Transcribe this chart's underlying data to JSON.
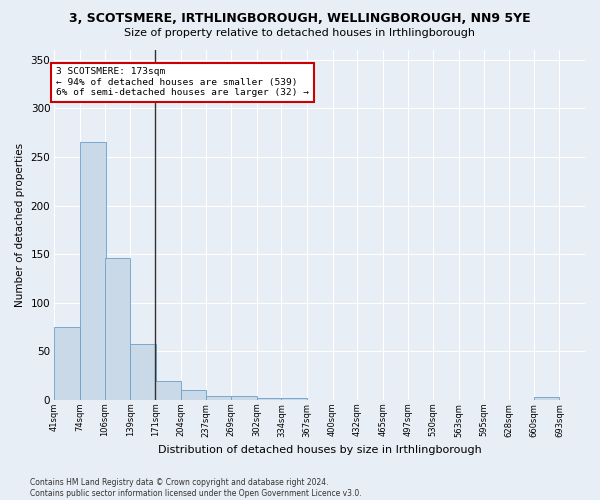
{
  "title": "3, SCOTSMERE, IRTHLINGBOROUGH, WELLINGBOROUGH, NN9 5YE",
  "subtitle": "Size of property relative to detached houses in Irthlingborough",
  "xlabel": "Distribution of detached houses by size in Irthlingborough",
  "ylabel": "Number of detached properties",
  "footnote": "Contains HM Land Registry data © Crown copyright and database right 2024.\nContains public sector information licensed under the Open Government Licence v3.0.",
  "bar_color": "#c9d9e8",
  "bar_edge_color": "#6a9fc8",
  "vline_color": "#333333",
  "vline_x_bin": 4,
  "annotation_text": "3 SCOTSMERE: 173sqm\n← 94% of detached houses are smaller (539)\n6% of semi-detached houses are larger (32) →",
  "annotation_box_color": "#ffffff",
  "annotation_box_edge": "#cc0000",
  "bins": [
    41,
    74,
    106,
    139,
    171,
    204,
    237,
    269,
    302,
    334,
    367,
    400,
    432,
    465,
    497,
    530,
    563,
    595,
    628,
    660,
    693
  ],
  "counts": [
    75,
    265,
    146,
    57,
    19,
    10,
    4,
    4,
    2,
    2,
    0,
    0,
    0,
    0,
    0,
    0,
    0,
    0,
    0,
    3
  ],
  "ylim": [
    0,
    360
  ],
  "yticks": [
    0,
    50,
    100,
    150,
    200,
    250,
    300,
    350
  ],
  "bg_color": "#e8eef5",
  "plot_bg_color": "#e8eef5",
  "grid_color": "#ffffff",
  "title_fontsize": 9,
  "subtitle_fontsize": 8,
  "xlabel_fontsize": 8,
  "ylabel_fontsize": 7.5,
  "xtick_fontsize": 6,
  "ytick_fontsize": 7.5,
  "footnote_fontsize": 5.5
}
